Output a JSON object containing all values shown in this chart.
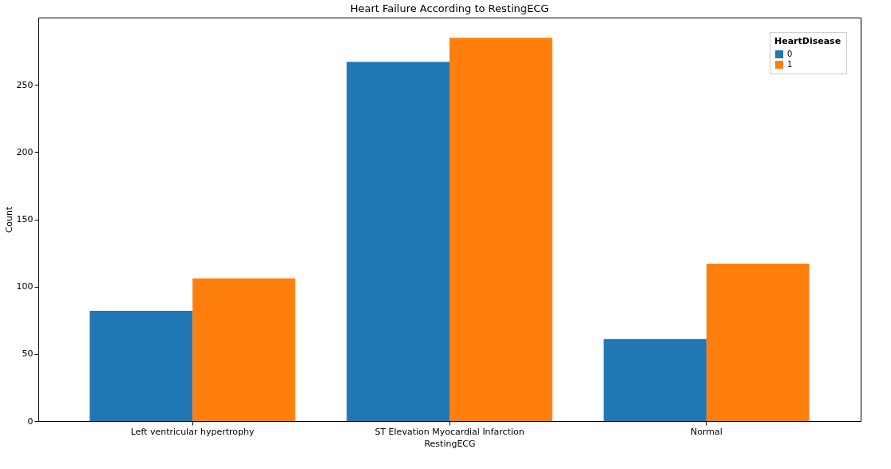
{
  "chart_data": {
    "type": "bar",
    "title": "Heart Failure  According to RestingECG",
    "xlabel": "RestingECG",
    "ylabel": "Count",
    "legend_title": "HeartDisease",
    "categories": [
      "Left ventricular hypertrophy",
      "ST Elevation Myocardial Infarction",
      "Normal"
    ],
    "series": [
      {
        "name": "0",
        "color": "#1f77b4",
        "values": [
          82,
          267,
          61
        ]
      },
      {
        "name": "1",
        "color": "#ff7f0e",
        "values": [
          106,
          285,
          117
        ]
      }
    ],
    "ylim": [
      0,
      300
    ],
    "yticks": [
      0,
      50,
      100,
      150,
      200,
      250
    ],
    "grid": false,
    "legend": "top right"
  }
}
